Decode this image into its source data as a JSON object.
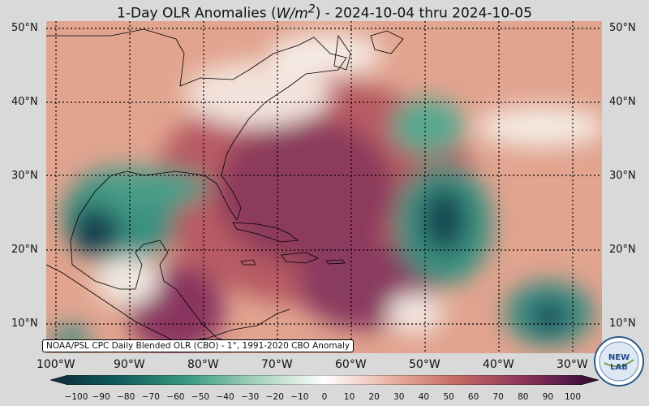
{
  "title": {
    "prefix": "1-Day OLR Anomalies (",
    "unit": "W/m",
    "unit_sup": "2",
    "suffix": ") - 2024-10-04 thru 2024-10-05"
  },
  "lat_labels": [
    "50°N",
    "40°N",
    "30°N",
    "20°N",
    "10°N"
  ],
  "lat_labels_right": [
    "50°N",
    "40°N",
    "30°N",
    "20°N",
    "10°N"
  ],
  "lon_labels": [
    "100°W",
    "90°W",
    "80°W",
    "70°W",
    "60°W",
    "50°W",
    "40°W",
    "30°W"
  ],
  "attribution": "NOAA/PSL CPC Daily Blended OLR (CBO) - 1°, 1991-2020 CBO Anomaly",
  "colorbar": {
    "ticks": [
      "−100",
      "−90",
      "−80",
      "−70",
      "−60",
      "−50",
      "−40",
      "−30",
      "−20",
      "−10",
      "0",
      "10",
      "20",
      "30",
      "40",
      "50",
      "60",
      "70",
      "80",
      "90",
      "100"
    ],
    "colors": [
      "#0d2a3a",
      "#0f5a5a",
      "#3a9a82",
      "#a9d4bd",
      "#ffffff",
      "#e9b3a3",
      "#c46a64",
      "#943a5a",
      "#5a1a4a",
      "#2a0a2a"
    ]
  },
  "logo": {
    "text_top": "NEW",
    "text_bottom": "LAB"
  }
}
